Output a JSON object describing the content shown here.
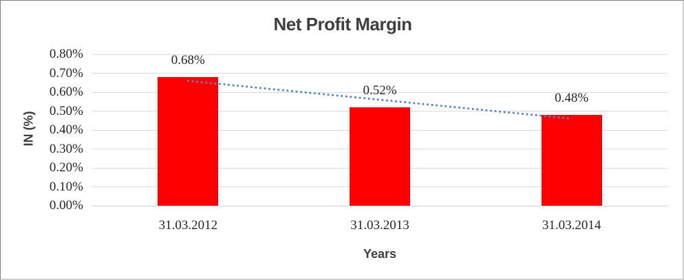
{
  "chart_data": {
    "type": "bar",
    "title": "Net Profit Margin",
    "xlabel": "Years",
    "ylabel": "IN (%)",
    "categories": [
      "31.03.2012",
      "31.03.2013",
      "31.03.2014"
    ],
    "values": [
      0.68,
      0.52,
      0.48
    ],
    "data_labels": [
      "0.68%",
      "0.52%",
      "0.48%"
    ],
    "y_ticks": [
      "0.80%",
      "0.70%",
      "0.60%",
      "0.50%",
      "0.40%",
      "0.30%",
      "0.20%",
      "0.10%",
      "0.00%"
    ],
    "ylim": [
      0,
      0.8
    ],
    "grid": true,
    "legend": false,
    "bar_color": "#FF0000",
    "gridline_color": "#D9D9D9",
    "axis_line_color": "#CFCFCF",
    "trendline": {
      "type": "linear",
      "style": "dotted",
      "color": "#4E86C6",
      "start_value": 0.66,
      "end_value": 0.46
    }
  }
}
